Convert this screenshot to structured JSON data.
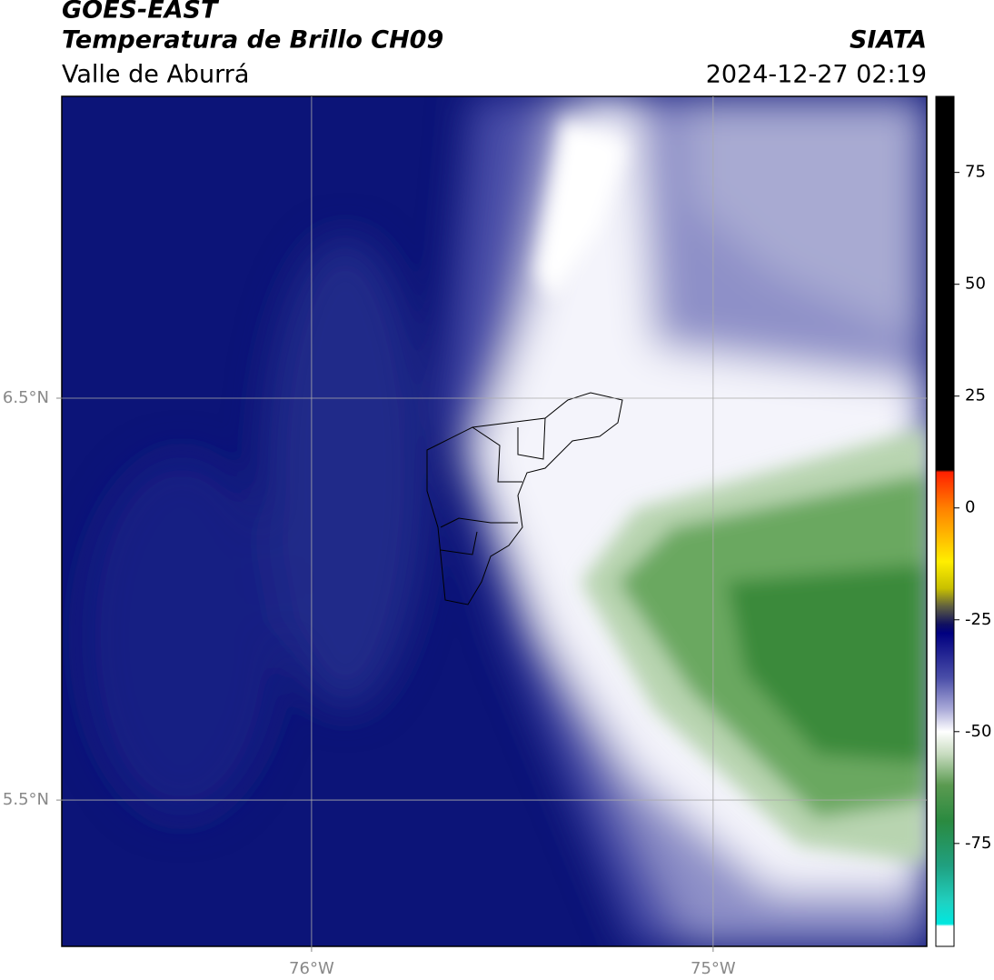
{
  "header": {
    "title": "GOES-EAST",
    "subtitle": "Temperatura de Brillo CH09",
    "region": "Valle de Aburrá",
    "source": "SIATA",
    "datetime": "2024-12-27 02:19"
  },
  "map": {
    "xlim": [
      -76.622,
      -74.468
    ],
    "ylim": [
      5.136,
      7.251
    ],
    "xticks": [
      {
        "value": -76,
        "label": "76°W"
      },
      {
        "value": -75,
        "label": "75°W"
      }
    ],
    "yticks": [
      {
        "value": 6.5,
        "label": "6.5°N"
      },
      {
        "value": 5.5,
        "label": "5.5°N"
      }
    ],
    "grid": true
  },
  "colorbar": {
    "lim": [
      -98,
      92
    ],
    "ticks": [
      75,
      50,
      25,
      0,
      -25,
      -50,
      -75
    ],
    "stops": [
      {
        "value": 92,
        "color": "#000000"
      },
      {
        "value": 8.5,
        "color": "#000000"
      },
      {
        "value": 8,
        "color": "#ff2000"
      },
      {
        "value": 0,
        "color": "#ff8000"
      },
      {
        "value": -12,
        "color": "#ffee00"
      },
      {
        "value": -18,
        "color": "#c8c000"
      },
      {
        "value": -22,
        "color": "#606040"
      },
      {
        "value": -26,
        "color": "#101060"
      },
      {
        "value": -28,
        "color": "#000080"
      },
      {
        "value": -38,
        "color": "#4a4ea8"
      },
      {
        "value": -45,
        "color": "#aaaad8"
      },
      {
        "value": -50,
        "color": "#ffffff"
      },
      {
        "value": -55,
        "color": "#c8dcc0"
      },
      {
        "value": -62,
        "color": "#5a9a50"
      },
      {
        "value": -70,
        "color": "#2a8a40"
      },
      {
        "value": -80,
        "color": "#20a080"
      },
      {
        "value": -88,
        "color": "#20d0c0"
      },
      {
        "value": -93,
        "color": "#00e8e0"
      },
      {
        "value": -93.5,
        "color": "#ffffff"
      },
      {
        "value": -98,
        "color": "#ffffff"
      }
    ]
  }
}
